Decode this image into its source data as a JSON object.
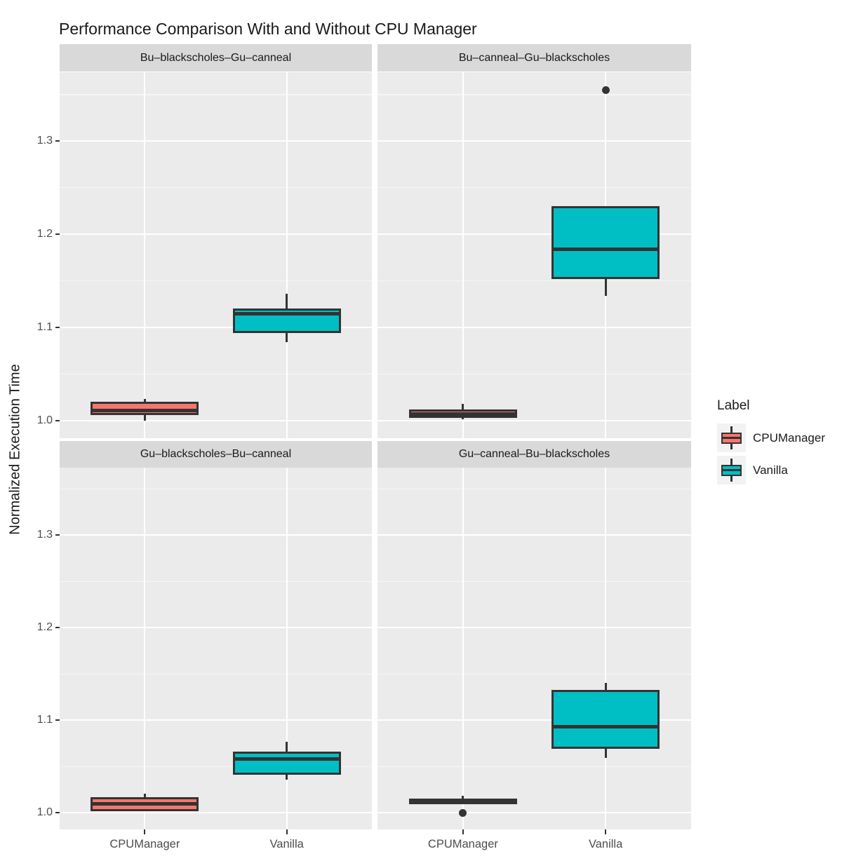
{
  "chart_data": {
    "type": "boxplot",
    "title": "Performance Comparison With and Without CPU Manager",
    "ylabel": "Normalized Execution Time",
    "x_categories": [
      "CPUManager",
      "Vanilla"
    ],
    "y_ticks": [
      1.0,
      1.1,
      1.2,
      1.3
    ],
    "y_tick_labels": [
      "1.0",
      "1.1",
      "1.2",
      "1.3"
    ],
    "y_minor_ticks": [
      1.05,
      1.15,
      1.25,
      1.35
    ],
    "ylim": [
      0.981,
      1.374
    ],
    "grid": true,
    "legend_position": "right",
    "legend": {
      "title": "Label",
      "entries": [
        {
          "label": "CPUManager",
          "color": "#F8766D"
        },
        {
          "label": "Vanilla",
          "color": "#00BFC4"
        }
      ]
    },
    "facets": [
      {
        "title": "Bu–blackscholes–Gu–canneal",
        "row": 0,
        "col": 0,
        "boxes": [
          {
            "category": "CPUManager",
            "color": "#F8766D",
            "min": 1.0,
            "q1": 1.006,
            "median": 1.011,
            "q3": 1.02,
            "max": 1.023,
            "outliers": []
          },
          {
            "category": "Vanilla",
            "color": "#00BFC4",
            "min": 1.084,
            "q1": 1.094,
            "median": 1.115,
            "q3": 1.12,
            "max": 1.136,
            "outliers": []
          }
        ]
      },
      {
        "title": "Bu–canneal–Gu–blackscholes",
        "row": 0,
        "col": 1,
        "boxes": [
          {
            "category": "CPUManager",
            "color": "#F8766D",
            "min": 1.001,
            "q1": 1.003,
            "median": 1.007,
            "q3": 1.012,
            "max": 1.018,
            "outliers": []
          },
          {
            "category": "Vanilla",
            "color": "#00BFC4",
            "min": 1.134,
            "q1": 1.152,
            "median": 1.184,
            "q3": 1.23,
            "max": 1.23,
            "outliers": [
              1.355
            ]
          }
        ]
      },
      {
        "title": "Gu–blackscholes–Bu–canneal",
        "row": 1,
        "col": 0,
        "boxes": [
          {
            "category": "CPUManager",
            "color": "#F8766D",
            "min": 1.002,
            "q1": 1.002,
            "median": 1.01,
            "q3": 1.017,
            "max": 1.021,
            "outliers": []
          },
          {
            "category": "Vanilla",
            "color": "#00BFC4",
            "min": 1.036,
            "q1": 1.041,
            "median": 1.058,
            "q3": 1.066,
            "max": 1.077,
            "outliers": []
          }
        ]
      },
      {
        "title": "Gu–canneal–Bu–blackscholes",
        "row": 1,
        "col": 1,
        "boxes": [
          {
            "category": "CPUManager",
            "color": "#F8766D",
            "min": 1.009,
            "q1": 1.009,
            "median": 1.012,
            "q3": 1.015,
            "max": 1.018,
            "outliers": [
              1.0
            ]
          },
          {
            "category": "Vanilla",
            "color": "#00BFC4",
            "min": 1.059,
            "q1": 1.069,
            "median": 1.093,
            "q3": 1.133,
            "max": 1.14,
            "outliers": []
          }
        ]
      }
    ],
    "style": {
      "panel_bg": "#EBEBEB",
      "strip_bg": "#D9D9D9",
      "grid_major": "#FFFFFF",
      "grid_minor": "rgba(255,255,255,0.55)",
      "box_stroke": "#333333",
      "tick_label_color": "#4D4D4D",
      "text_color": "#1A1A1A"
    }
  }
}
